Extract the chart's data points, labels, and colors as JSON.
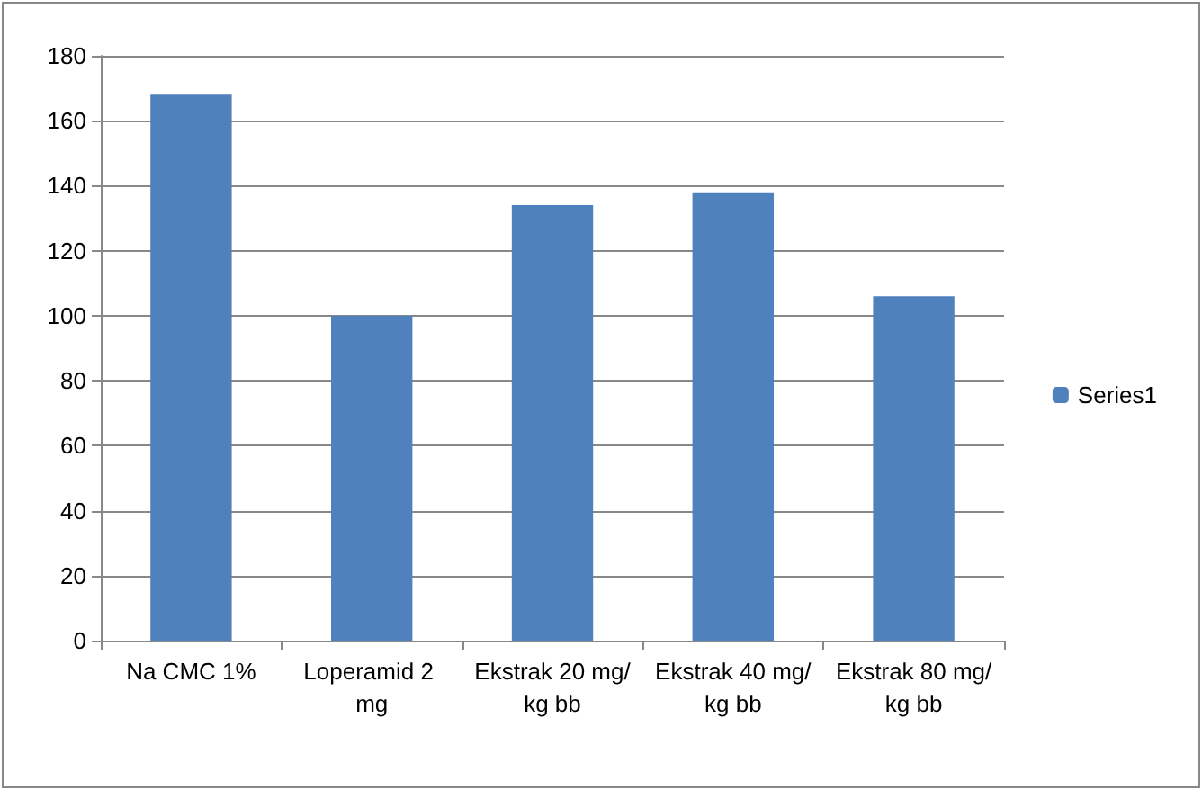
{
  "chart_data": {
    "type": "bar",
    "categories": [
      "Na CMC 1%",
      "Loperamid 2 mg",
      "Ekstrak 20 mg/kg bb",
      "Ekstrak 40 mg/kg bb",
      "Ekstrak 80 mg/kg bb"
    ],
    "series": [
      {
        "name": "Series1",
        "color": "#4f81bd",
        "values": [
          168,
          100,
          134,
          138,
          106
        ]
      }
    ],
    "ylim": [
      0,
      180
    ],
    "yticks": [
      0,
      20,
      40,
      60,
      80,
      100,
      120,
      140,
      160,
      180
    ],
    "grid": "y",
    "legend": "right"
  }
}
